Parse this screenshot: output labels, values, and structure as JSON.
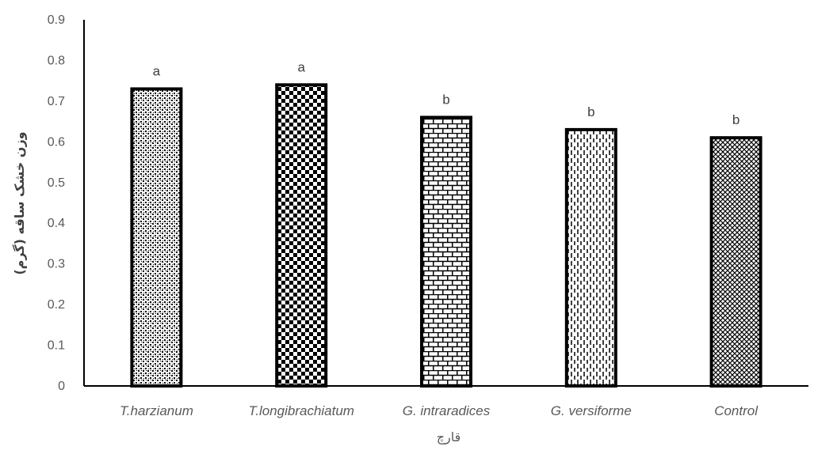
{
  "chart_data": {
    "type": "bar",
    "title": "",
    "xlabel": "قارچ",
    "ylabel": "وزن خشک ساقه (گرم)",
    "ylim": [
      0,
      0.9
    ],
    "yticks": [
      "0",
      "0.1",
      "0.2",
      "0.3",
      "0.4",
      "0.5",
      "0.6",
      "0.7",
      "0.8",
      "0.9"
    ],
    "grid": false,
    "categories": [
      "T.harzianum",
      "T.longibrachiatum",
      "G. intraradices",
      "G. versiforme",
      "Control"
    ],
    "values": [
      0.73,
      0.74,
      0.66,
      0.63,
      0.61
    ],
    "labels": [
      "a",
      "a",
      "b",
      "b",
      "b"
    ],
    "patterns": [
      "dots",
      "checker",
      "brick",
      "dashed-vertical",
      "crosshatch"
    ],
    "colors": {
      "bar_fill": "#ffffff",
      "bar_pattern": "#000000",
      "bar_outline": "#000000",
      "axis": "#000000",
      "text": "#595959"
    }
  }
}
